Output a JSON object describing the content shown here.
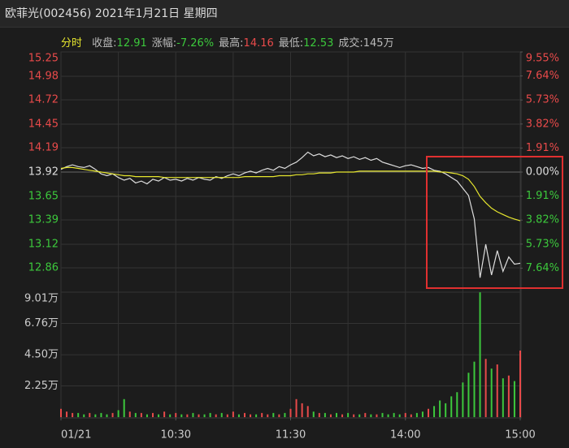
{
  "header": {
    "title": "欧菲光(002456) 2021年1月21日 星期四"
  },
  "chart_data": {
    "type": "intraday",
    "mode_label": "分时",
    "stats": [
      {
        "label": "收盘:",
        "value": "12.91",
        "color": "#3cc83c"
      },
      {
        "label": "涨幅:",
        "value": "-7.26%",
        "color": "#3cc83c"
      },
      {
        "label": "最高:",
        "value": "14.16",
        "color": "#e84a4a"
      },
      {
        "label": "最低:",
        "value": "12.53",
        "color": "#3cc83c"
      },
      {
        "label": "成交:",
        "value": "145万",
        "color": "#bbbbbb"
      }
    ],
    "up_color": "#e84a4a",
    "down_color": "#3cc83c",
    "flat_color": "#dddddd",
    "xlim": [
      0,
      240
    ],
    "xticks": [
      {
        "value": 0,
        "label": "01/21"
      },
      {
        "value": 60,
        "label": "10:30"
      },
      {
        "value": 120,
        "label": "11:30"
      },
      {
        "value": 180,
        "label": "14:00"
      },
      {
        "value": 240,
        "label": "15:00"
      }
    ],
    "xgrid": [
      0,
      30,
      60,
      90,
      120,
      150,
      180,
      210,
      240
    ],
    "ylim": [
      12.59,
      15.25
    ],
    "yticks": [
      15.25,
      14.98,
      14.72,
      14.45,
      14.19,
      13.92,
      13.65,
      13.39,
      13.12,
      12.86
    ],
    "y2lim": [
      -9.55,
      9.55
    ],
    "y2ticks": [
      {
        "value": 9.55,
        "label": "9.55%"
      },
      {
        "value": 7.64,
        "label": "7.64%"
      },
      {
        "value": 5.73,
        "label": "5.73%"
      },
      {
        "value": 3.82,
        "label": "3.82%"
      },
      {
        "value": 1.91,
        "label": "1.91%"
      },
      {
        "value": 0,
        "label": "0.00%"
      },
      {
        "value": -1.91,
        "label": "1.91%"
      },
      {
        "value": -3.82,
        "label": "3.82%"
      },
      {
        "value": -5.73,
        "label": "5.73%"
      },
      {
        "value": -7.64,
        "label": "7.64%"
      }
    ],
    "x": [
      0,
      3,
      6,
      9,
      12,
      15,
      18,
      21,
      24,
      27,
      30,
      33,
      36,
      39,
      42,
      45,
      48,
      51,
      54,
      57,
      60,
      63,
      66,
      69,
      72,
      75,
      78,
      81,
      84,
      87,
      90,
      93,
      96,
      99,
      102,
      105,
      108,
      111,
      114,
      117,
      120,
      123,
      126,
      129,
      132,
      135,
      138,
      141,
      144,
      147,
      150,
      153,
      156,
      159,
      162,
      165,
      168,
      171,
      174,
      177,
      180,
      183,
      186,
      189,
      192,
      195,
      198,
      201,
      204,
      207,
      210,
      213,
      216,
      219,
      222,
      225,
      228,
      231,
      234,
      237,
      240
    ],
    "series": [
      {
        "color": "#dddddd",
        "values": [
          13.95,
          13.98,
          14.0,
          13.98,
          13.97,
          13.99,
          13.95,
          13.9,
          13.88,
          13.9,
          13.86,
          13.83,
          13.85,
          13.8,
          13.82,
          13.79,
          13.84,
          13.82,
          13.86,
          13.83,
          13.84,
          13.82,
          13.85,
          13.83,
          13.86,
          13.84,
          13.83,
          13.87,
          13.85,
          13.88,
          13.9,
          13.88,
          13.91,
          13.93,
          13.91,
          13.94,
          13.96,
          13.94,
          13.98,
          13.96,
          14.0,
          14.03,
          14.08,
          14.14,
          14.1,
          14.12,
          14.09,
          14.11,
          14.08,
          14.1,
          14.07,
          14.09,
          14.06,
          14.08,
          14.05,
          14.07,
          14.03,
          14.01,
          13.99,
          13.97,
          13.99,
          14.0,
          13.98,
          13.96,
          13.97,
          13.94,
          13.93,
          13.9,
          13.86,
          13.82,
          13.74,
          13.66,
          13.4,
          12.75,
          13.12,
          12.78,
          13.05,
          12.82,
          12.98,
          12.9,
          12.91
        ]
      },
      {
        "color": "#e6e62e",
        "values": [
          13.96,
          13.97,
          13.97,
          13.96,
          13.95,
          13.94,
          13.93,
          13.92,
          13.91,
          13.9,
          13.89,
          13.88,
          13.88,
          13.87,
          13.87,
          13.87,
          13.87,
          13.87,
          13.86,
          13.86,
          13.86,
          13.86,
          13.86,
          13.86,
          13.86,
          13.86,
          13.86,
          13.86,
          13.86,
          13.86,
          13.86,
          13.86,
          13.87,
          13.87,
          13.87,
          13.87,
          13.87,
          13.87,
          13.88,
          13.88,
          13.88,
          13.89,
          13.89,
          13.9,
          13.9,
          13.91,
          13.91,
          13.91,
          13.92,
          13.92,
          13.92,
          13.92,
          13.93,
          13.93,
          13.93,
          13.93,
          13.93,
          13.93,
          13.93,
          13.93,
          13.93,
          13.93,
          13.93,
          13.93,
          13.93,
          13.93,
          13.92,
          13.92,
          13.91,
          13.9,
          13.88,
          13.84,
          13.76,
          13.65,
          13.58,
          13.52,
          13.48,
          13.45,
          13.42,
          13.4,
          13.38
        ]
      }
    ],
    "volume": {
      "ylim": [
        0,
        9.01
      ],
      "yticks": [
        {
          "value": 9.01,
          "label": "9.01万"
        },
        {
          "value": 6.76,
          "label": "6.76万"
        },
        {
          "value": 4.5,
          "label": "4.50万"
        },
        {
          "value": 2.25,
          "label": "2.25万"
        }
      ],
      "values": [
        0.6,
        0.4,
        0.3,
        0.3,
        0.2,
        0.3,
        0.2,
        0.3,
        0.2,
        0.3,
        0.5,
        1.3,
        0.4,
        0.3,
        0.3,
        0.2,
        0.3,
        0.2,
        0.4,
        0.2,
        0.3,
        0.2,
        0.2,
        0.3,
        0.2,
        0.2,
        0.3,
        0.2,
        0.3,
        0.2,
        0.4,
        0.2,
        0.3,
        0.2,
        0.2,
        0.3,
        0.2,
        0.3,
        0.2,
        0.3,
        0.6,
        1.3,
        1.0,
        0.8,
        0.4,
        0.3,
        0.3,
        0.2,
        0.3,
        0.2,
        0.3,
        0.2,
        0.2,
        0.3,
        0.2,
        0.2,
        0.3,
        0.2,
        0.3,
        0.2,
        0.3,
        0.2,
        0.3,
        0.4,
        0.6,
        0.8,
        1.2,
        1.0,
        1.5,
        1.8,
        2.5,
        3.2,
        4.0,
        9.0,
        4.2,
        3.5,
        3.8,
        2.8,
        3.0,
        2.6,
        4.8
      ]
    }
  }
}
